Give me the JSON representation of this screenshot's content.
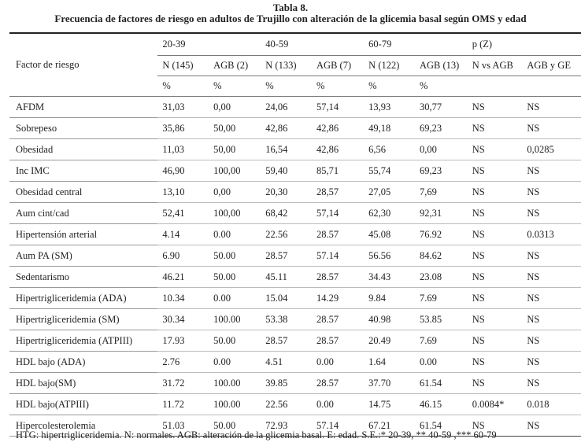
{
  "caption": {
    "title": "Tabla 8.",
    "subtitle": "Frecuencia de factores de riesgo en adultos de Trujillo con alteración de la glicemia basal según OMS y edad"
  },
  "header": {
    "factor_label": "Factor de riesgo",
    "groups": [
      "20-39",
      "40-59",
      "60-79",
      "p (Z)"
    ],
    "subheaders": [
      "N (145)",
      "AGB (2)",
      "N (133)",
      "AGB (7)",
      "N (122)",
      "AGB (13)",
      "N vs AGB",
      "AGB y GE"
    ],
    "units": [
      "%",
      "%",
      "%",
      "%",
      "%",
      "%"
    ]
  },
  "rows": [
    {
      "factor": "AFDM",
      "v": [
        "31,03",
        "0,00",
        "24,06",
        "57,14",
        "13,93",
        "30,77",
        "NS",
        "NS"
      ]
    },
    {
      "factor": "Sobrepeso",
      "v": [
        "35,86",
        "50,00",
        "42,86",
        "42,86",
        "49,18",
        "69,23",
        "NS",
        "NS"
      ]
    },
    {
      "factor": "Obesidad",
      "v": [
        "11,03",
        "50,00",
        "16,54",
        "42,86",
        "6,56",
        "0,00",
        "NS",
        "0,0285"
      ]
    },
    {
      "factor": "Inc IMC",
      "v": [
        "46,90",
        "100,00",
        "59,40",
        "85,71",
        "55,74",
        "69,23",
        "NS",
        "NS"
      ]
    },
    {
      "factor": "Obesidad central",
      "v": [
        "13,10",
        "0,00",
        "20,30",
        "28,57",
        "27,05",
        "7,69",
        "NS",
        "NS"
      ]
    },
    {
      "factor": "Aum cint/cad",
      "v": [
        "52,41",
        "100,00",
        "68,42",
        "57,14",
        "62,30",
        "92,31",
        "NS",
        "NS"
      ]
    },
    {
      "factor": "Hipertensión arterial",
      "v": [
        "4.14",
        "0.00",
        "22.56",
        "28.57",
        "45.08",
        "76.92",
        "NS",
        "0.0313"
      ]
    },
    {
      "factor": "Aum PA (SM)",
      "v": [
        "6.90",
        "50.00",
        "28.57",
        "57.14",
        "56.56",
        "84.62",
        "NS",
        "NS"
      ]
    },
    {
      "factor": "Sedentarismo",
      "v": [
        "46.21",
        "50.00",
        "45.11",
        "28.57",
        "34.43",
        "23.08",
        "NS",
        "NS"
      ]
    },
    {
      "factor": "Hipertrigliceridemia (ADA)",
      "v": [
        "10.34",
        "0.00",
        "15.04",
        "14.29",
        "9.84",
        "7.69",
        "NS",
        "NS"
      ]
    },
    {
      "factor": "Hipertrigliceridemia (SM)",
      "v": [
        "30.34",
        "100.00",
        "53.38",
        "28.57",
        "40.98",
        "53.85",
        "NS",
        "NS"
      ]
    },
    {
      "factor": "Hipertrigliceridemia (ATPIII)",
      "v": [
        "17.93",
        "50.00",
        "28.57",
        "28.57",
        "20.49",
        "7.69",
        "NS",
        "NS"
      ]
    },
    {
      "factor": "HDL bajo (ADA)",
      "v": [
        "2.76",
        "0.00",
        "4.51",
        "0.00",
        "1.64",
        "0.00",
        "NS",
        "NS"
      ]
    },
    {
      "factor": "HDL bajo(SM)",
      "v": [
        "31.72",
        "100.00",
        "39.85",
        "28.57",
        "37.70",
        "61.54",
        "NS",
        "NS"
      ]
    },
    {
      "factor": "HDL bajo(ATPIII)",
      "v": [
        "11.72",
        "100.00",
        "22.56",
        "0.00",
        "14.75",
        "46.15",
        "0.0084*",
        "0.018"
      ]
    },
    {
      "factor": "Hipercolesterolemia",
      "v": [
        "51.03",
        "50.00",
        "72.93",
        "57.14",
        "67.21",
        "61.54",
        "NS",
        "NS"
      ]
    }
  ],
  "footnote": "HTG: hipertrigliceridemia. N: normales. AGB: alteración de la glicemia basal. E: edad. S.E.:* 20-39, ** 40-59 ,*** 60-79"
}
